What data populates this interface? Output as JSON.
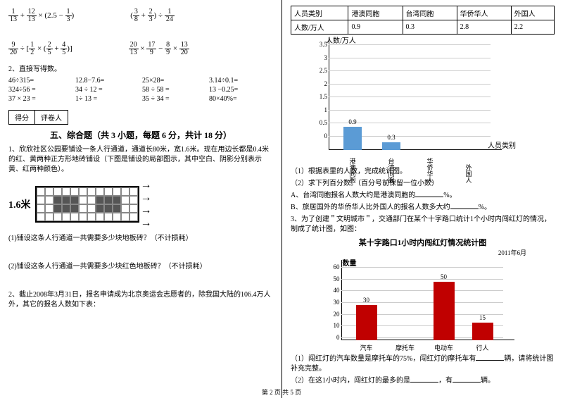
{
  "left": {
    "math1a": "1/13 + 12/13 × (2.5 − 1/3)",
    "math1b": "(3/8 + 2/3) ÷ 1/24",
    "math2a": "9/20 ÷ [1/2 × (2/5 + 4/5)]",
    "math2b": "20/13 × 17/9 − 8/9 × 13/20",
    "q2_label": "2、直接写得数。",
    "calc": [
      [
        "46÷315=",
        "12.8−7.6=",
        "25×28=",
        "3.14÷0.1="
      ],
      [
        "324÷56 =",
        "34 ÷ 12 =",
        "58 ÷ 58 =",
        "13 −0.25="
      ],
      [
        "37 × 23 =",
        "1÷ 13 =",
        "35 ÷ 34 =",
        "80×40%="
      ]
    ],
    "score_labels": [
      "得分",
      "评卷人"
    ],
    "section5": "五、综合题（共 3 小题，每题 6 分，共计 18 分）",
    "p1_1": "1、欣欣社区公园要铺设一条人行通道，通道长80米，宽1.6米。现在用边长都是0.4米的红、黄两种正方形地砖铺设（下图是铺设的局部图示，其中空白、阴影分别表示黄、红两种颜色）。",
    "tile_label": "1.6米",
    "p1_q1": "(1)铺设这条人行通道一共需要多少块地板砖？（不计损耗）",
    "p1_q2": "(2)铺设这条人行通道一共需要多少块红色地板砖？（不计损耗）",
    "p2": "2、截止2008年3月31日，报名申请成为北京奥运会志愿者的，除我国大陆的106.4万人外，其它的报名人数如下表："
  },
  "right": {
    "table_headers": [
      "人员类别",
      "港澳同胞",
      "台湾同胞",
      "华侨华人",
      "外国人"
    ],
    "table_row": [
      "人数/万人",
      "0.9",
      "0.3",
      "2.8",
      "2.2"
    ],
    "chart1": {
      "y_title": "人数/万人",
      "x_title": "人员类别",
      "y_max": 3.5,
      "y_ticks": [
        0,
        0.5,
        1,
        1.5,
        2,
        2.5,
        3,
        3.5
      ],
      "bars": [
        {
          "label": "港澳同胞",
          "value": 0.9,
          "show_val": "0.9"
        },
        {
          "label": "台湾同胞",
          "value": 0.3,
          "show_val": "0.3"
        },
        {
          "label": "华侨华人",
          "value": 0,
          "show_val": ""
        },
        {
          "label": "外国人",
          "value": 0,
          "show_val": ""
        }
      ],
      "bar_color": "#5b9bd5"
    },
    "q1": "（1）根据表里的人数，完成统计图。",
    "q2": "（2）求下列百分数。（百分号前保留一位小数）",
    "q2a_pre": "A、台湾同胞报名人数大约是港澳同胞的",
    "q2a_suf": "%。",
    "q2b_pre": "B、旅居国外的华侨华人比外国人的报名人数多大约",
    "q2b_suf": "%。",
    "p3": "3、为了创建＂文明城市＂，交通部门在某个十字路口统计1个小时内闯红灯的情况，制成了统计图，如图：",
    "chart2": {
      "title": "某十字路口1小时内闯红灯情况统计图",
      "date": "2011年6月",
      "y_title": "数量",
      "y_ticks": [
        0,
        10,
        20,
        30,
        40,
        50,
        60
      ],
      "bars": [
        {
          "label": "汽车",
          "value": 30,
          "show_val": "30"
        },
        {
          "label": "摩托车",
          "value": 0,
          "show_val": ""
        },
        {
          "label": "电动车",
          "value": 50,
          "show_val": "50"
        },
        {
          "label": "行人",
          "value": 15,
          "show_val": "15"
        }
      ],
      "bar_color": "#c00000"
    },
    "q3_1a": "（1）闯红灯的汽车数量是摩托车的75%，闯红灯的摩托车有",
    "q3_1b": "辆，请将统计图补充完整。",
    "q3_2a": "（2）在这1小时内，闯红灯的最多的是",
    "q3_2b": "，有",
    "q3_2c": "辆。"
  },
  "footer": "第 2 页  共 5 页"
}
